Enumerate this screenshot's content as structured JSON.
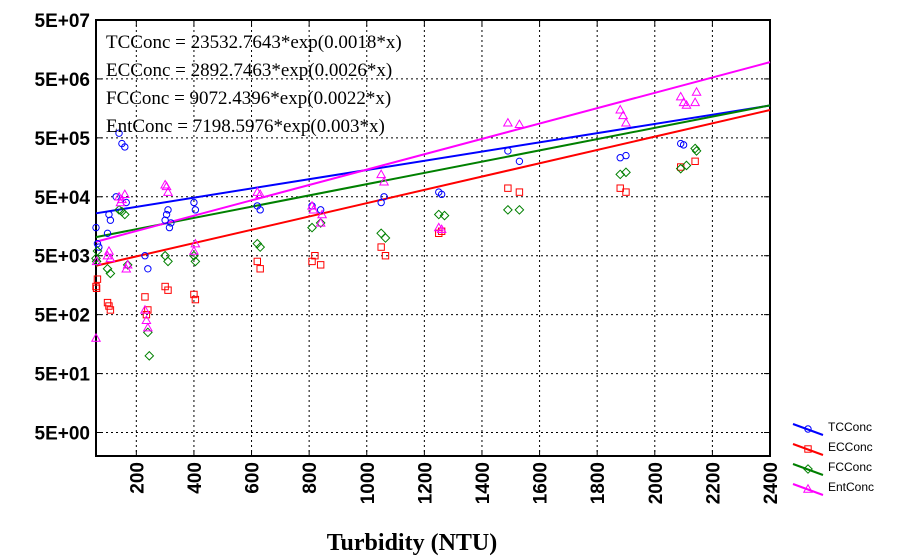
{
  "chart_data": {
    "type": "scatter",
    "xlabel": "Turbidity (NTU)",
    "ylabel": "",
    "xlim": [
      60,
      2400
    ],
    "ylim_log10": [
      0.3,
      7.699
    ],
    "y_scale": "log",
    "x_ticks": [
      "200",
      "400",
      "600",
      "800",
      "1000",
      "1200",
      "1400",
      "1600",
      "1800",
      "2000",
      "2200",
      "2400"
    ],
    "y_ticks": [
      "5E+00",
      "5E+01",
      "5E+02",
      "5E+03",
      "5E+04",
      "5E+05",
      "5E+06",
      "5E+07"
    ],
    "grid": true,
    "legend_position": "bottom-right, outside plot",
    "annotations": [
      "TCConc = 23532.7643*exp(0.0018*x)",
      "ECConc = 2892.7463*exp(0.0026*x)",
      "FCConc = 9072.4396*exp(0.0022*x)",
      "EntConc = 7198.5976*exp(0.003*x)"
    ],
    "series": [
      {
        "name": "TCConc",
        "color": "#0000ff",
        "marker": "circle",
        "fit": {
          "a": 23532.7643,
          "b": 0.0018
        },
        "points": [
          [
            60,
            15000
          ],
          [
            65,
            8000
          ],
          [
            70,
            7000
          ],
          [
            100,
            12000
          ],
          [
            105,
            25000
          ],
          [
            110,
            20000
          ],
          [
            130,
            50000
          ],
          [
            140,
            600000
          ],
          [
            150,
            400000
          ],
          [
            160,
            350000
          ],
          [
            165,
            40000
          ],
          [
            230,
            5000
          ],
          [
            240,
            3000
          ],
          [
            300,
            20000
          ],
          [
            305,
            25000
          ],
          [
            310,
            30000
          ],
          [
            315,
            15000
          ],
          [
            320,
            18000
          ],
          [
            400,
            40000
          ],
          [
            405,
            30000
          ],
          [
            620,
            35000
          ],
          [
            630,
            30000
          ],
          [
            810,
            35000
          ],
          [
            840,
            30000
          ],
          [
            1050,
            40000
          ],
          [
            1060,
            50000
          ],
          [
            1250,
            60000
          ],
          [
            1260,
            55000
          ],
          [
            1490,
            300000
          ],
          [
            1530,
            200000
          ],
          [
            1880,
            230000
          ],
          [
            1900,
            250000
          ],
          [
            2090,
            400000
          ],
          [
            2100,
            380000
          ]
        ]
      },
      {
        "name": "ECConc",
        "color": "#ff0000",
        "marker": "square",
        "fit": {
          "a": 2892.7463,
          "b": 0.0026
        },
        "points": [
          [
            60,
            1500
          ],
          [
            62,
            1400
          ],
          [
            65,
            2000
          ],
          [
            100,
            800
          ],
          [
            105,
            700
          ],
          [
            110,
            600
          ],
          [
            230,
            1000
          ],
          [
            235,
            500
          ],
          [
            240,
            600
          ],
          [
            300,
            1500
          ],
          [
            310,
            1300
          ],
          [
            400,
            1100
          ],
          [
            405,
            900
          ],
          [
            620,
            4000
          ],
          [
            630,
            3000
          ],
          [
            810,
            4000
          ],
          [
            820,
            5000
          ],
          [
            840,
            3500
          ],
          [
            1050,
            7000
          ],
          [
            1065,
            5000
          ],
          [
            1250,
            12000
          ],
          [
            1260,
            13000
          ],
          [
            1490,
            70000
          ],
          [
            1530,
            60000
          ],
          [
            1880,
            70000
          ],
          [
            1900,
            60000
          ],
          [
            2090,
            160000
          ],
          [
            2140,
            200000
          ]
        ]
      },
      {
        "name": "FCConc",
        "color": "#008000",
        "marker": "diamond",
        "fit": {
          "a": 9072.4396,
          "b": 0.0022
        },
        "points": [
          [
            60,
            4500
          ],
          [
            62,
            4000
          ],
          [
            65,
            6000
          ],
          [
            100,
            3000
          ],
          [
            110,
            2500
          ],
          [
            140,
            30000
          ],
          [
            150,
            28000
          ],
          [
            160,
            25000
          ],
          [
            170,
            3500
          ],
          [
            240,
            250
          ],
          [
            245,
            100
          ],
          [
            300,
            5000
          ],
          [
            310,
            4000
          ],
          [
            400,
            5000
          ],
          [
            405,
            4000
          ],
          [
            620,
            8000
          ],
          [
            630,
            7000
          ],
          [
            810,
            15000
          ],
          [
            840,
            18000
          ],
          [
            1050,
            12000
          ],
          [
            1065,
            10000
          ],
          [
            1250,
            25000
          ],
          [
            1270,
            24000
          ],
          [
            1490,
            30000
          ],
          [
            1530,
            30000
          ],
          [
            1880,
            120000
          ],
          [
            1900,
            130000
          ],
          [
            2090,
            150000
          ],
          [
            2110,
            170000
          ],
          [
            2140,
            330000
          ],
          [
            2145,
            300000
          ]
        ]
      },
      {
        "name": "EntConc",
        "color": "#ff00ff",
        "marker": "triangle",
        "fit": {
          "a": 7198.5976,
          "b": 0.003
        },
        "points": [
          [
            60,
            200
          ],
          [
            62,
            4000
          ],
          [
            100,
            5000
          ],
          [
            105,
            6000
          ],
          [
            110,
            4500
          ],
          [
            140,
            50000
          ],
          [
            145,
            40000
          ],
          [
            150,
            45000
          ],
          [
            160,
            55000
          ],
          [
            165,
            3000
          ],
          [
            170,
            3500
          ],
          [
            230,
            600
          ],
          [
            235,
            400
          ],
          [
            240,
            300
          ],
          [
            300,
            80000
          ],
          [
            305,
            75000
          ],
          [
            310,
            60000
          ],
          [
            400,
            6000
          ],
          [
            405,
            8000
          ],
          [
            620,
            60000
          ],
          [
            630,
            55000
          ],
          [
            810,
            35000
          ],
          [
            815,
            30000
          ],
          [
            840,
            18000
          ],
          [
            845,
            25000
          ],
          [
            1050,
            120000
          ],
          [
            1060,
            90000
          ],
          [
            1250,
            15000
          ],
          [
            1260,
            14000
          ],
          [
            1490,
            900000
          ],
          [
            1530,
            850000
          ],
          [
            1880,
            1500000
          ],
          [
            1890,
            1200000
          ],
          [
            1900,
            900000
          ],
          [
            2090,
            2500000
          ],
          [
            2100,
            2000000
          ],
          [
            2110,
            1800000
          ],
          [
            2140,
            2000000
          ],
          [
            2145,
            3000000
          ]
        ]
      }
    ]
  }
}
